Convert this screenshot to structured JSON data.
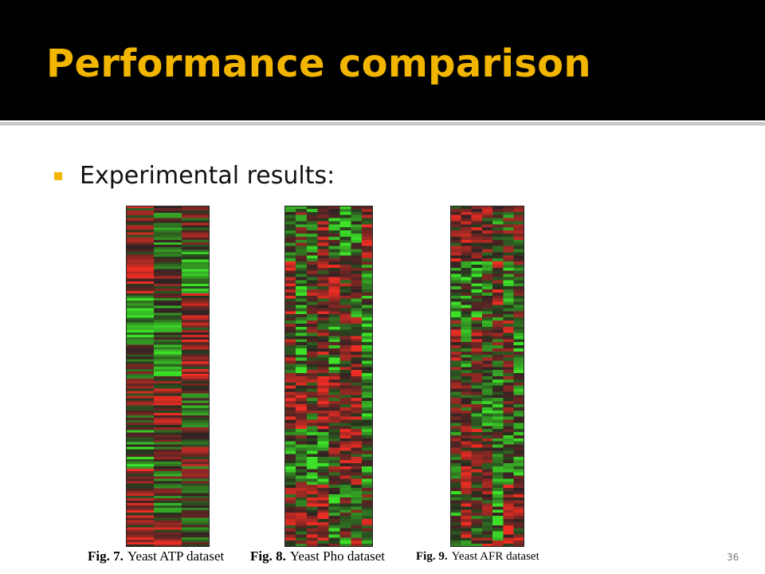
{
  "header": {
    "title": "Performance comparison"
  },
  "bullets": [
    "Experimental results:"
  ],
  "figures": [
    {
      "label": "Fig. 7.",
      "caption": "Yeast ATP dataset"
    },
    {
      "label": "Fig. 8.",
      "caption": "Yeast Pho dataset"
    },
    {
      "label": "Fig. 9.",
      "caption": "Yeast AFR dataset"
    }
  ],
  "page_number": "36"
}
